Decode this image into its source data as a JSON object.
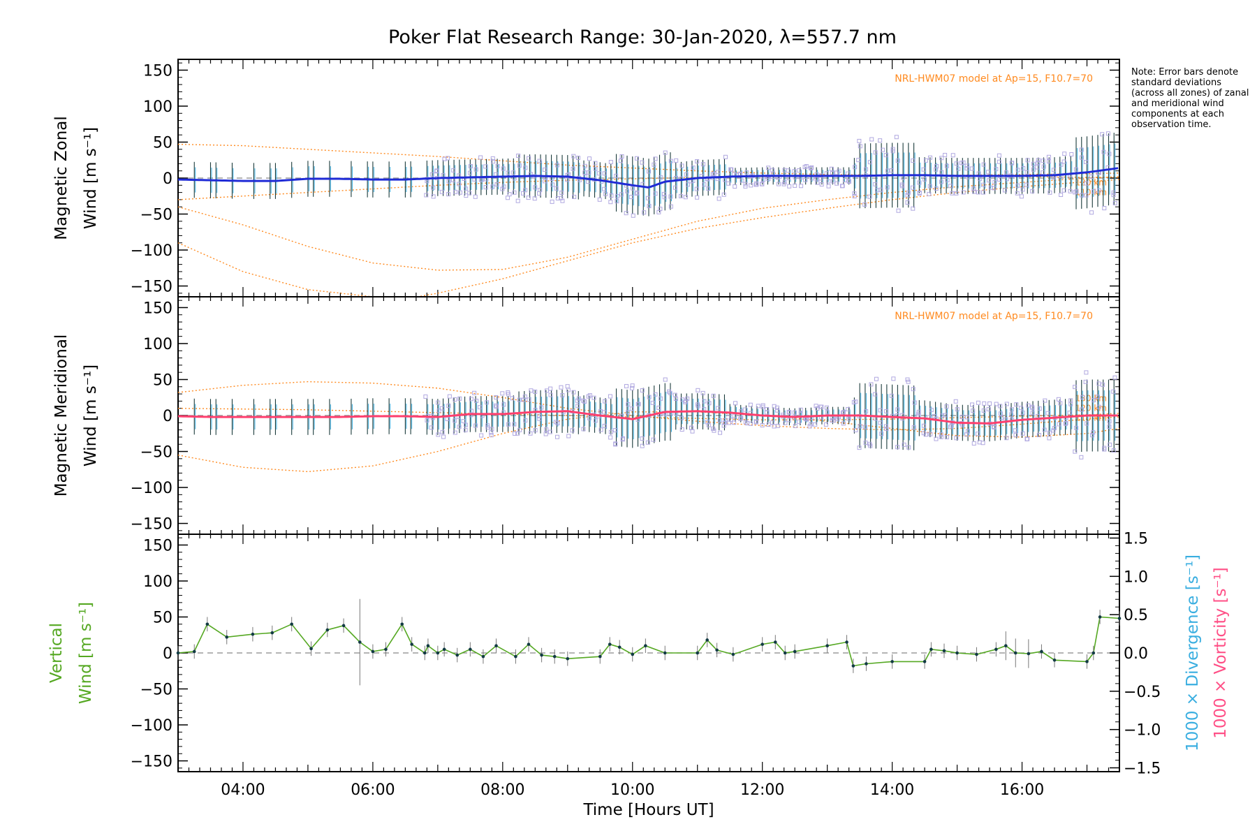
{
  "title": "Poker Flat Research Range: 30-Jan-2020, λ=557.7 nm",
  "note": "Note: Error bars denote standard deviations (across all zones) of zanal and meridional wind components at each observation time.",
  "colors": {
    "zonal_line": "#1f2bd6",
    "zonal_secondary": "#3aaee0",
    "meridional_line": "#ff3f6e",
    "model": "#ff8a1f",
    "zone_markers": "#b0a8e0",
    "vertical": "#55a822",
    "divergence": "#3aaee0",
    "vorticity": "#ff4f86",
    "error_bar": "#1a3a3a"
  },
  "chart_data": [
    {
      "type": "line",
      "panel": "zonal",
      "xlim": [
        3.0,
        17.5
      ],
      "ylim": [
        -165,
        165
      ],
      "yticks": [
        -150,
        -100,
        -50,
        0,
        50,
        100,
        150
      ],
      "ylabel_lines": [
        "Magnetic Zonal",
        "Wind [m s⁻¹]"
      ],
      "model_label": "NRL-HWM07 model at Ap=15, F10.7=70",
      "altitude_labels": [
        "120 km",
        "110 km"
      ],
      "series": [
        {
          "name": "",
          "x": [
            3.0,
            3.5,
            4.0,
            4.5,
            5.0,
            5.5,
            6.0,
            6.5,
            7.0,
            7.5,
            8.0,
            8.5,
            9.0,
            9.5,
            10.0,
            10.25,
            10.5,
            11.0,
            11.5,
            12.0,
            12.5,
            13.0,
            13.5,
            14.0,
            14.5,
            15.0,
            15.5,
            16.0,
            16.5,
            17.0,
            17.5
          ],
          "y": [
            -2,
            -3,
            -4,
            -4,
            -1,
            -1,
            -2,
            -2,
            0,
            1,
            2,
            3,
            2,
            -3,
            -10,
            -13,
            -5,
            0,
            2,
            3,
            3,
            3,
            3,
            4,
            4,
            3,
            3,
            3,
            4,
            8,
            14
          ]
        }
      ],
      "models": [
        {
          "label": "",
          "x": [
            3.0,
            4.0,
            5.0,
            6.0,
            7.0,
            8.0,
            9.0,
            10.0,
            11.0,
            12.0,
            13.0,
            14.0,
            15.0,
            16.0,
            17.0,
            17.5
          ],
          "y": [
            -40,
            -65,
            -95,
            -118,
            -128,
            -127,
            -110,
            -85,
            -60,
            -42,
            -30,
            -20,
            -12,
            -6,
            0,
            2
          ]
        },
        {
          "label": "",
          "x": [
            3.0,
            4.0,
            5.0,
            6.0,
            6.5,
            7.0,
            8.0,
            9.0,
            10.0,
            11.0,
            12.0,
            13.0,
            14.0,
            15.0,
            16.0,
            17.0,
            17.5
          ],
          "y": [
            -90,
            -130,
            -155,
            -165,
            -168,
            -160,
            -140,
            -115,
            -90,
            -70,
            -55,
            -42,
            -30,
            -20,
            -12,
            -5,
            -2
          ]
        },
        {
          "label": "",
          "x": [
            3.0,
            4.0,
            5.0,
            6.0,
            7.0,
            8.0,
            9.0,
            10.0,
            11.0,
            12.0,
            13.0,
            14.0,
            15.0,
            16.0,
            17.0,
            17.5
          ],
          "y": [
            47,
            45,
            40,
            35,
            30,
            24,
            18,
            14,
            10,
            7,
            5,
            4,
            3,
            2,
            1,
            1
          ]
        },
        {
          "label": "",
          "x": [
            3.0,
            4.0,
            5.0,
            6.0,
            7.0,
            8.0,
            9.0,
            10.0,
            11.0,
            12.0,
            13.0,
            14.0,
            15.0,
            16.0,
            17.0,
            17.5
          ],
          "y": [
            -30,
            -25,
            -20,
            -15,
            -10,
            -6,
            -3,
            -1,
            1,
            2,
            3,
            4,
            4,
            5,
            6,
            7
          ]
        }
      ]
    },
    {
      "type": "line",
      "panel": "meridional",
      "xlim": [
        3.0,
        17.5
      ],
      "ylim": [
        -165,
        165
      ],
      "yticks": [
        -150,
        -100,
        -50,
        0,
        50,
        100,
        150
      ],
      "ylabel_lines": [
        "Magnetic Meridional",
        "Wind [m s⁻¹]"
      ],
      "model_label": "NRL-HWM07 model at Ap=15, F10.7=70",
      "altitude_labels": [
        "130 km",
        "120 km",
        "110 km"
      ],
      "series": [
        {
          "name": "",
          "x": [
            3.0,
            3.5,
            4.0,
            4.5,
            5.0,
            5.5,
            6.0,
            6.5,
            7.0,
            7.5,
            8.0,
            8.5,
            9.0,
            9.5,
            10.0,
            10.5,
            11.0,
            11.5,
            12.0,
            12.5,
            13.0,
            13.5,
            14.0,
            14.5,
            15.0,
            15.5,
            16.0,
            16.5,
            17.0,
            17.5
          ],
          "y": [
            -1,
            -2,
            -2,
            -2,
            -2,
            -2,
            -1,
            -1,
            -2,
            2,
            2,
            5,
            6,
            0,
            -5,
            5,
            6,
            4,
            0,
            -2,
            0,
            0,
            -2,
            -4,
            -10,
            -11,
            -6,
            -3,
            0,
            0
          ]
        }
      ],
      "models": [
        {
          "label": "",
          "x": [
            3.0,
            4.0,
            5.0,
            6.0,
            7.0,
            8.0,
            9.0,
            10.0,
            11.0,
            12.0,
            13.0,
            14.0,
            15.0,
            16.0,
            17.0,
            17.5
          ],
          "y": [
            -55,
            -72,
            -78,
            -70,
            -50,
            -25,
            -5,
            5,
            5,
            0,
            -8,
            -18,
            -28,
            -30,
            -25,
            -18
          ]
        },
        {
          "label": "",
          "x": [
            3.0,
            4.0,
            5.0,
            6.0,
            7.0,
            8.0,
            9.0,
            10.0,
            11.0,
            12.0,
            13.0,
            14.0,
            15.0,
            16.0,
            17.0,
            17.5
          ],
          "y": [
            32,
            42,
            47,
            45,
            38,
            25,
            10,
            0,
            -8,
            -14,
            -18,
            -20,
            -18,
            -12,
            -5,
            -2
          ]
        },
        {
          "label": "",
          "x": [
            3.0,
            4.0,
            5.0,
            6.0,
            7.0,
            8.0,
            9.0,
            10.0,
            11.0,
            12.0,
            13.0,
            14.0,
            15.0,
            16.0,
            17.0,
            17.5
          ],
          "y": [
            10,
            9,
            8,
            6,
            4,
            2,
            0,
            -2,
            -4,
            -6,
            -6,
            -5,
            -3,
            -1,
            1,
            3
          ]
        }
      ]
    },
    {
      "type": "line",
      "panel": "vertical",
      "xlim": [
        3.0,
        17.5
      ],
      "ylim": [
        -165,
        165
      ],
      "yticks": [
        -150,
        -100,
        -50,
        0,
        50,
        100,
        150
      ],
      "right_ylim": [
        -1.55,
        1.55
      ],
      "right_yticks": [
        "-1.5",
        "-1.0",
        "-0.5",
        "0.0",
        "0.5",
        "1.0",
        "1.5"
      ],
      "ylabel_lines": [
        "Vertical",
        "Wind [m s⁻¹]"
      ],
      "right_ylabel_1": "1000 × Divergence [s⁻¹]",
      "right_ylabel_2": "1000 × Vorticity [s⁻¹]",
      "xlabel": "Time [Hours UT]",
      "xticks": [
        "04:00",
        "06:00",
        "08:00",
        "10:00",
        "12:00",
        "14:00",
        "16:00"
      ],
      "xtick_values": [
        4,
        6,
        8,
        10,
        12,
        14,
        16
      ],
      "series": [
        {
          "name": "",
          "x": [
            3.0,
            3.25,
            3.45,
            3.75,
            4.15,
            4.45,
            4.75,
            5.05,
            5.3,
            5.55,
            5.8,
            6.0,
            6.2,
            6.45,
            6.6,
            6.8,
            6.85,
            7.0,
            7.1,
            7.3,
            7.5,
            7.7,
            7.9,
            8.2,
            8.4,
            8.6,
            8.8,
            9.0,
            9.5,
            9.65,
            9.8,
            10.0,
            10.2,
            10.5,
            11.0,
            11.15,
            11.3,
            11.55,
            12.0,
            12.2,
            12.35,
            12.5,
            13.0,
            13.3,
            13.4,
            13.6,
            14.0,
            14.5,
            14.6,
            14.8,
            15.0,
            15.3,
            15.6,
            15.75,
            15.9,
            16.1,
            16.3,
            16.5,
            17.0,
            17.1,
            17.2,
            17.5
          ],
          "y": [
            0,
            2,
            40,
            22,
            26,
            28,
            40,
            6,
            32,
            38,
            15,
            2,
            5,
            40,
            12,
            0,
            10,
            0,
            5,
            -3,
            5,
            -5,
            10,
            -5,
            12,
            -3,
            -5,
            -8,
            -5,
            12,
            8,
            -2,
            10,
            0,
            0,
            18,
            4,
            -2,
            12,
            15,
            0,
            2,
            10,
            15,
            -18,
            -15,
            -12,
            -12,
            5,
            3,
            0,
            -2,
            5,
            10,
            0,
            -1,
            2,
            -10,
            -12,
            0,
            50,
            48
          ]
        }
      ]
    }
  ]
}
